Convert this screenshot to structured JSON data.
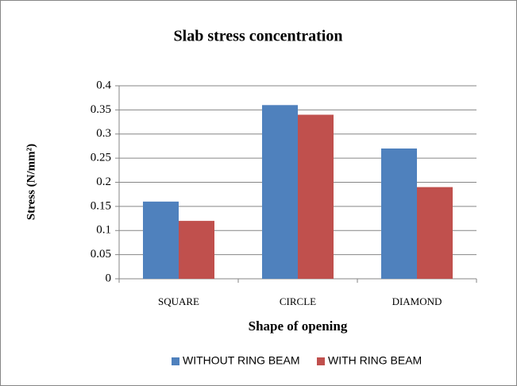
{
  "chart_data": {
    "type": "bar",
    "title": "Slab stress concentration",
    "x_label": "Shape of opening",
    "y_label": "Stress (N/mm²)",
    "categories": [
      "SQUARE",
      "CIRCLE",
      "DIAMOND"
    ],
    "series": [
      {
        "name": "WITHOUT RING BEAM",
        "color": "#4f81bd",
        "values": [
          0.16,
          0.36,
          0.27
        ]
      },
      {
        "name": "WITH RING BEAM",
        "color": "#c0504d",
        "values": [
          0.12,
          0.34,
          0.19
        ]
      }
    ],
    "ylim": [
      0,
      0.4
    ],
    "yticks": [
      0,
      0.05,
      0.1,
      0.15,
      0.2,
      0.25,
      0.3,
      0.35,
      0.4
    ],
    "grid": true,
    "legend": "bottom"
  }
}
